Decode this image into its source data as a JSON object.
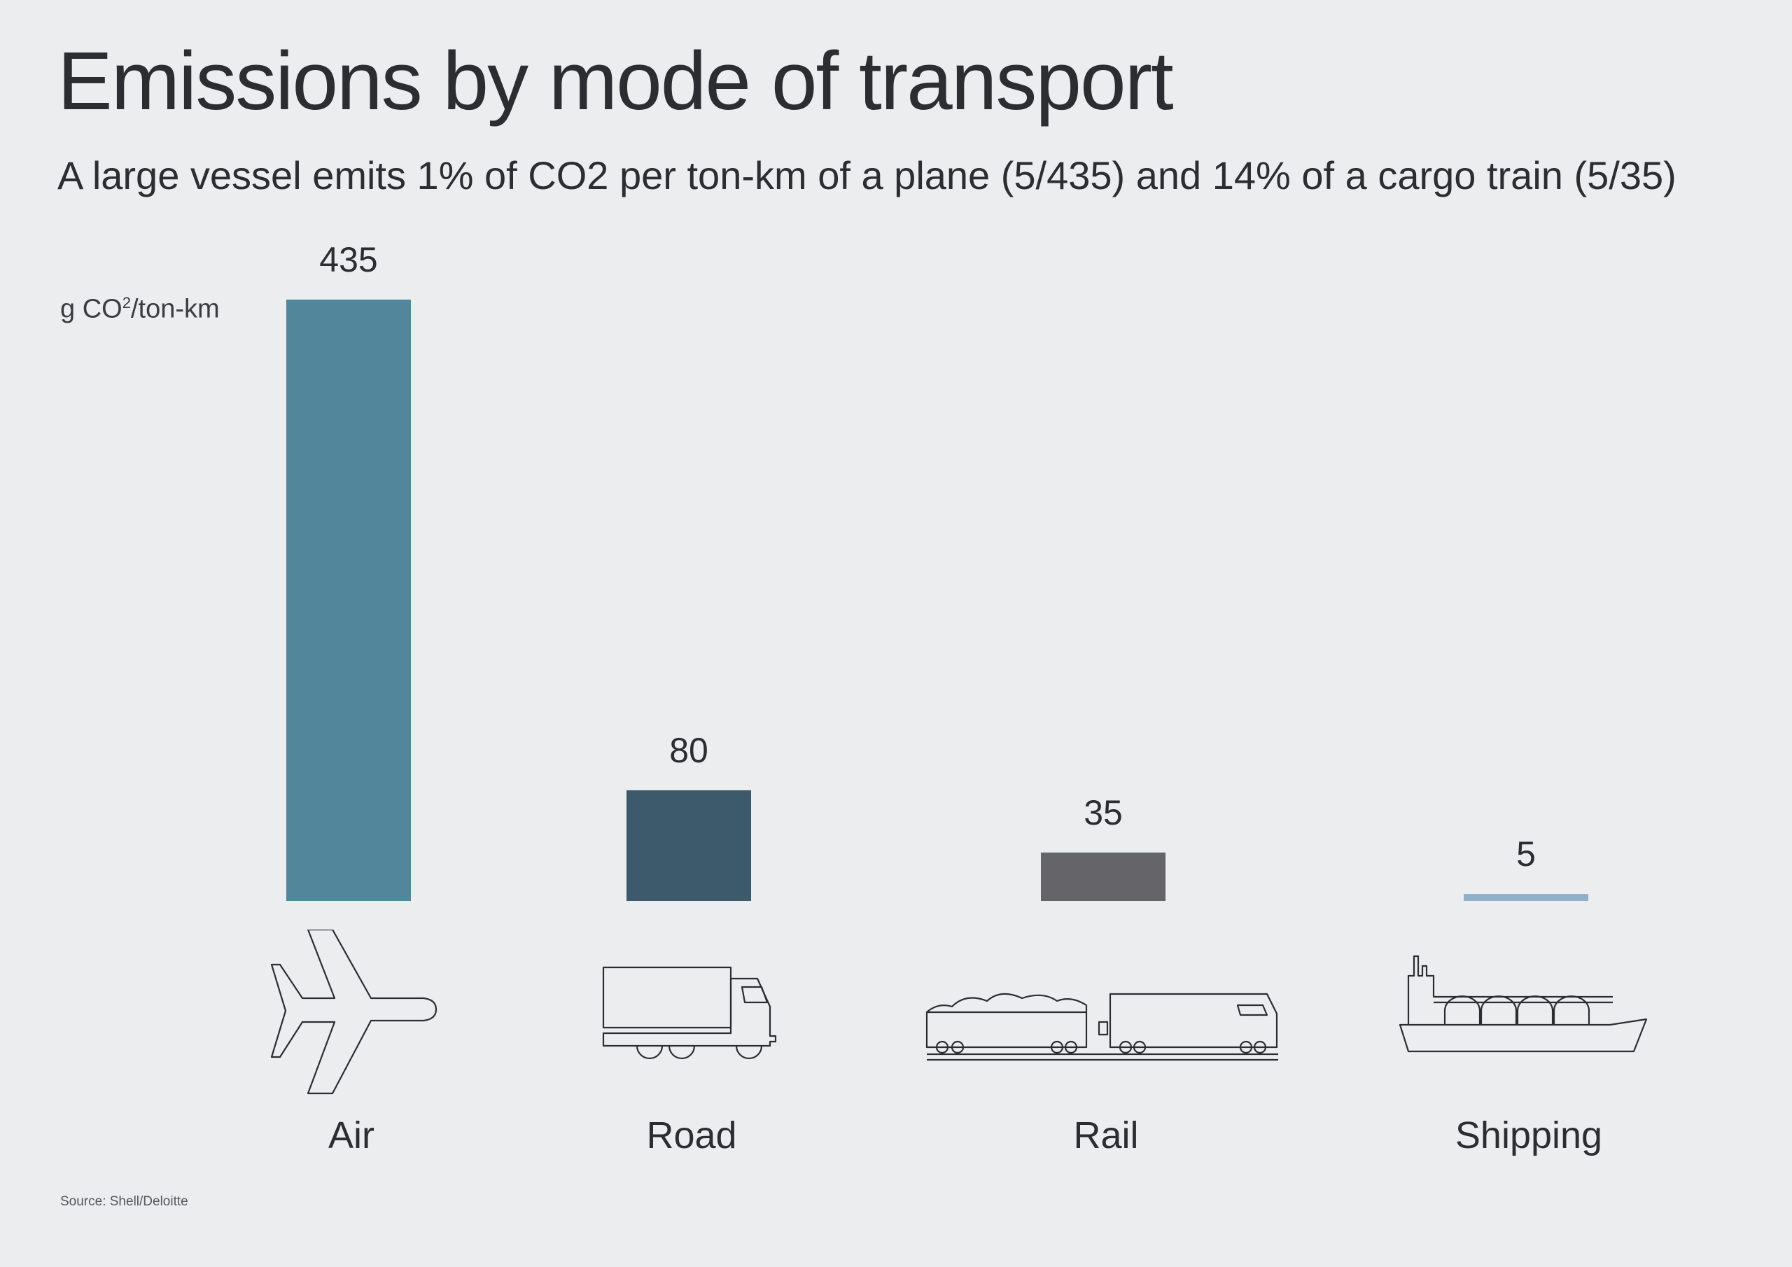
{
  "title": "Emissions by mode of transport",
  "subtitle": "A large vessel emits 1% of CO2 per ton-km of a plane (5/435) and 14% of a cargo train (5/35)",
  "unit_label": {
    "text": "g CO",
    "sup": "2",
    "tail": "/ton-km"
  },
  "source": "Source: Shell/Deloitte",
  "chart_data": {
    "type": "bar",
    "categories": [
      "Air",
      "Road",
      "Rail",
      "Shipping"
    ],
    "values": [
      435,
      80,
      35,
      5
    ],
    "data_labels": [
      "435",
      "80",
      "35",
      "5"
    ],
    "colors": [
      "#52869b",
      "#3d596c",
      "#646469",
      "#8fb0c9"
    ],
    "icons": [
      "airplane-icon",
      "truck-icon",
      "train-icon",
      "ship-icon"
    ],
    "ylabel": "g CO2/ton-km",
    "grid": false
  }
}
